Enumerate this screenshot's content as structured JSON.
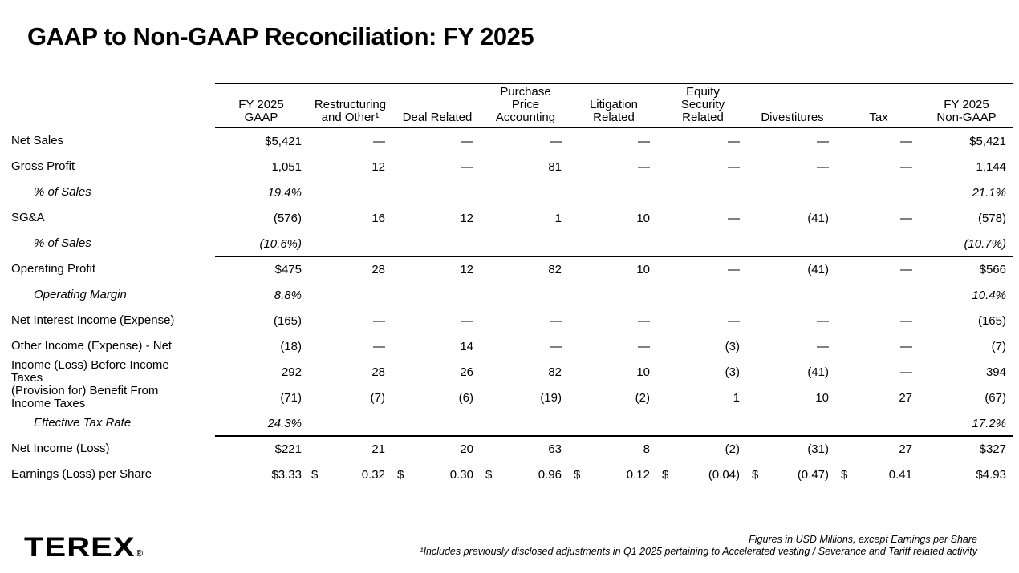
{
  "title": "GAAP to Non-GAAP Reconciliation: FY 2025",
  "table": {
    "header": {
      "columns": [
        {
          "key": "fy2025-gaap",
          "lines": [
            "FY 2025",
            "GAAP"
          ]
        },
        {
          "key": "restructuring-and-other",
          "lines": [
            "Restructuring",
            "and Other¹"
          ]
        },
        {
          "key": "deal-related",
          "lines": [
            "Deal Related"
          ]
        },
        {
          "key": "purchase-price-accounting",
          "lines": [
            "Purchase",
            "Price",
            "Accounting"
          ]
        },
        {
          "key": "litigation-related",
          "lines": [
            "Litigation",
            "Related"
          ]
        },
        {
          "key": "equity-security-related",
          "lines": [
            "Equity",
            "Security",
            "Related"
          ]
        },
        {
          "key": "divestitures",
          "lines": [
            "Divestitures"
          ]
        },
        {
          "key": "tax",
          "lines": [
            "Tax"
          ]
        },
        {
          "key": "fy2025-non-gaap",
          "lines": [
            "FY 2025",
            "Non-GAAP"
          ]
        }
      ]
    },
    "rows": [
      {
        "label": "Net Sales",
        "type": "data",
        "rule_above": false,
        "cells": [
          "$5,421",
          "—",
          "—",
          "—",
          "—",
          "—",
          "—",
          "—",
          "$5,421"
        ]
      },
      {
        "label": "Gross Profit",
        "type": "data",
        "rule_above": false,
        "cells": [
          "1,051",
          "12",
          "—",
          "81",
          "—",
          "—",
          "—",
          "—",
          "1,144"
        ]
      },
      {
        "label": "% of Sales",
        "type": "pct",
        "rule_above": false,
        "cells": [
          "19.4%",
          "",
          "",
          "",
          "",
          "",
          "",
          "",
          "21.1%"
        ]
      },
      {
        "label": "SG&A",
        "type": "data",
        "rule_above": false,
        "cells": [
          "(576)",
          "16",
          "12",
          "1",
          "10",
          "—",
          "(41)",
          "—",
          "(578)"
        ]
      },
      {
        "label": "% of Sales",
        "type": "pct",
        "rule_above": false,
        "cells": [
          "(10.6%)",
          "",
          "",
          "",
          "",
          "",
          "",
          "",
          "(10.7%)"
        ]
      },
      {
        "label": "Operating Profit",
        "type": "data",
        "rule_above": true,
        "cells": [
          "$475",
          "28",
          "12",
          "82",
          "10",
          "—",
          "(41)",
          "—",
          "$566"
        ]
      },
      {
        "label": "Operating Margin",
        "type": "pct",
        "rule_above": false,
        "cells": [
          "8.8%",
          "",
          "",
          "",
          "",
          "",
          "",
          "",
          "10.4%"
        ]
      },
      {
        "label": "Net Interest Income (Expense)",
        "type": "data",
        "rule_above": false,
        "cells": [
          "(165)",
          "—",
          "—",
          "—",
          "—",
          "—",
          "—",
          "—",
          "(165)"
        ]
      },
      {
        "label": "Other Income (Expense) - Net",
        "type": "data",
        "rule_above": false,
        "cells": [
          "(18)",
          "—",
          "14",
          "—",
          "—",
          "(3)",
          "—",
          "—",
          "(7)"
        ]
      },
      {
        "label": "Income (Loss) Before Income Taxes",
        "type": "data",
        "rule_above": false,
        "cells": [
          "292",
          "28",
          "26",
          "82",
          "10",
          "(3)",
          "(41)",
          "—",
          "394"
        ]
      },
      {
        "label": "(Provision for) Benefit From Income Taxes",
        "type": "data",
        "rule_above": false,
        "cells": [
          "(71)",
          "(7)",
          "(6)",
          "(19)",
          "(2)",
          "1",
          "10",
          "27",
          "(67)"
        ]
      },
      {
        "label": "Effective Tax Rate",
        "type": "pct",
        "rule_above": false,
        "cells": [
          "24.3%",
          "",
          "",
          "",
          "",
          "",
          "",
          "",
          "17.2%"
        ]
      },
      {
        "label": "Net Income (Loss)",
        "type": "data",
        "rule_above": true,
        "cells": [
          "$221",
          "21",
          "20",
          "63",
          "8",
          "(2)",
          "(31)",
          "27",
          "$327"
        ]
      },
      {
        "label": "Earnings (Loss) per Share",
        "type": "eps",
        "currency_symbol": "$",
        "rule_above": false,
        "cells": [
          "$3.33",
          "0.32",
          "0.30",
          "0.96",
          "0.12",
          "(0.04)",
          "(0.47)",
          "0.41",
          "$4.93"
        ]
      }
    ]
  },
  "footer": {
    "logo": "TEREX",
    "logo_registered": "®",
    "note_units": "Figures in  USD Millions, except Earnings per Share",
    "note_1": "¹Includes previously disclosed adjustments in Q1 2025 pertaining to Accelerated vesting / Severance and Tariff related activity"
  }
}
